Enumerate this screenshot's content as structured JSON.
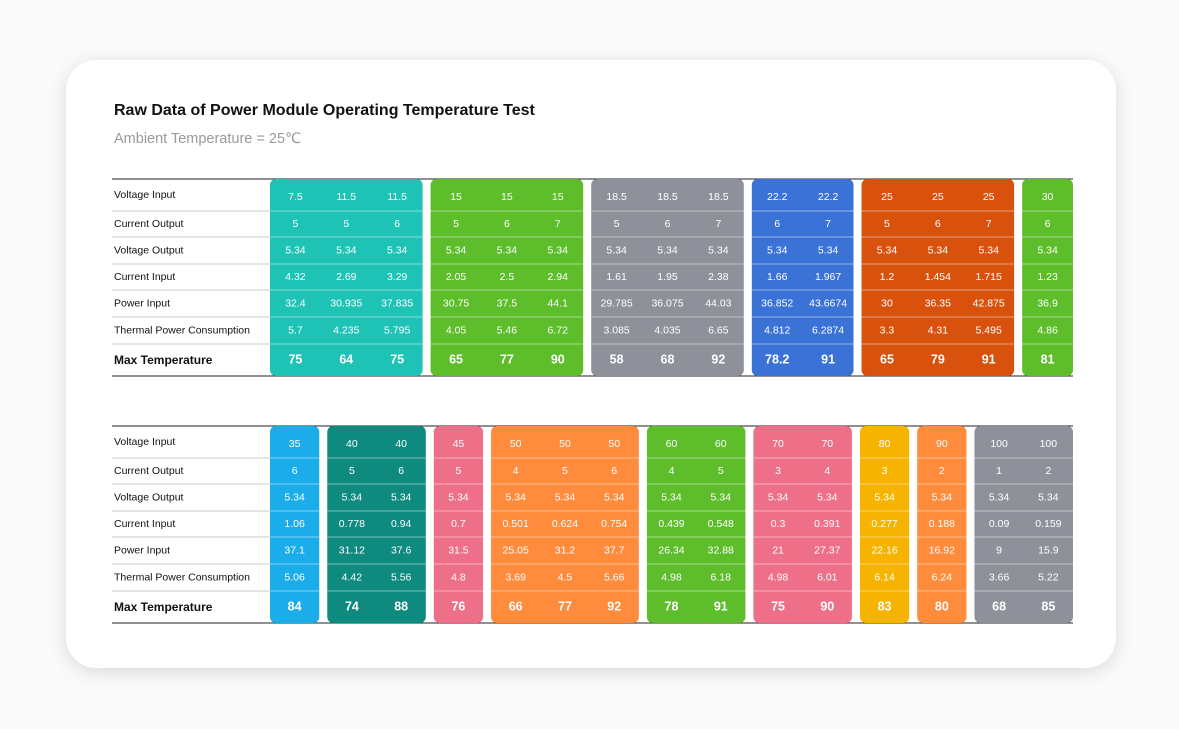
{
  "title": "Raw Data of Power Module Operating Temperature Test",
  "subtitle": "Ambient Temperature = 25℃",
  "tables": [
    {
      "row_labels": [
        "Voltage Input",
        "Current Output",
        "Voltage Output",
        "Current Input",
        "Power Input",
        "Thermal Power Consumption",
        "Max Temperature"
      ],
      "groups": [
        {
          "color": "#1fc3b5",
          "columns": [
            [
              "7.5",
              "5",
              "5.34",
              "4.32",
              "32.4",
              "5.7",
              "75"
            ],
            [
              "11.5",
              "5",
              "5.34",
              "2.69",
              "30.935",
              "4.235",
              "64"
            ],
            [
              "11.5",
              "6",
              "5.34",
              "3.29",
              "37.835",
              "5.795",
              "75"
            ]
          ]
        },
        {
          "color": "#5dbd2b",
          "columns": [
            [
              "15",
              "5",
              "5.34",
              "2.05",
              "30.75",
              "4.05",
              "65"
            ],
            [
              "15",
              "6",
              "5.34",
              "2.5",
              "37.5",
              "5.46",
              "77"
            ],
            [
              "15",
              "7",
              "5.34",
              "2.94",
              "44.1",
              "6.72",
              "90"
            ]
          ]
        },
        {
          "color": "#8e9199",
          "columns": [
            [
              "18.5",
              "5",
              "5.34",
              "1.61",
              "29.785",
              "3.085",
              "58"
            ],
            [
              "18.5",
              "6",
              "5.34",
              "1.95",
              "36.075",
              "4.035",
              "68"
            ],
            [
              "18.5",
              "7",
              "5.34",
              "2.38",
              "44.03",
              "6.65",
              "92"
            ]
          ]
        },
        {
          "color": "#3b72d6",
          "columns": [
            [
              "22.2",
              "6",
              "5.34",
              "1.66",
              "36.852",
              "4.812",
              "78.2"
            ],
            [
              "22.2",
              "7",
              "5.34",
              "1.967",
              "43.6674",
              "6.2874",
              "91"
            ]
          ]
        },
        {
          "color": "#d8520e",
          "columns": [
            [
              "25",
              "5",
              "5.34",
              "1.2",
              "30",
              "3.3",
              "65"
            ],
            [
              "25",
              "6",
              "5.34",
              "1.454",
              "36.35",
              "4.31",
              "79"
            ],
            [
              "25",
              "7",
              "5.34",
              "1.715",
              "42.875",
              "5.495",
              "91"
            ]
          ]
        },
        {
          "color": "#5dbd2b",
          "columns": [
            [
              "30",
              "6",
              "5.34",
              "1.23",
              "36.9",
              "4.86",
              "81"
            ]
          ]
        }
      ]
    },
    {
      "row_labels": [
        "Voltage Input",
        "Current Output",
        "Voltage Output",
        "Current Input",
        "Power Input",
        "Thermal Power Consumption",
        "Max Temperature"
      ],
      "groups": [
        {
          "color": "#1badea",
          "columns": [
            [
              "35",
              "6",
              "5.34",
              "1.06",
              "37.1",
              "5.06",
              "84"
            ]
          ]
        },
        {
          "color": "#0e8a7f",
          "columns": [
            [
              "40",
              "5",
              "5.34",
              "0.778",
              "31.12",
              "4.42",
              "74"
            ],
            [
              "40",
              "6",
              "5.34",
              "0.94",
              "37.6",
              "5.56",
              "88"
            ]
          ]
        },
        {
          "color": "#ee7088",
          "columns": [
            [
              "45",
              "5",
              "5.34",
              "0.7",
              "31.5",
              "4.8",
              "76"
            ]
          ]
        },
        {
          "color": "#ff8b3d",
          "columns": [
            [
              "50",
              "4",
              "5.34",
              "0.501",
              "25.05",
              "3.69",
              "66"
            ],
            [
              "50",
              "5",
              "5.34",
              "0.624",
              "31.2",
              "4.5",
              "77"
            ],
            [
              "50",
              "6",
              "5.34",
              "0.754",
              "37.7",
              "5.66",
              "92"
            ]
          ]
        },
        {
          "color": "#5dbd2b",
          "columns": [
            [
              "60",
              "4",
              "5.34",
              "0.439",
              "26.34",
              "4.98",
              "78"
            ],
            [
              "60",
              "5",
              "5.34",
              "0.548",
              "32.88",
              "6.18",
              "91"
            ]
          ]
        },
        {
          "color": "#ee7088",
          "columns": [
            [
              "70",
              "3",
              "5.34",
              "0.3",
              "21",
              "4.98",
              "75"
            ],
            [
              "70",
              "4",
              "5.34",
              "0.391",
              "27.37",
              "6.01",
              "90"
            ]
          ]
        },
        {
          "color": "#f6b400",
          "columns": [
            [
              "80",
              "3",
              "5.34",
              "0.277",
              "22.16",
              "6.14",
              "83"
            ]
          ]
        },
        {
          "color": "#ff8b3d",
          "columns": [
            [
              "90",
              "2",
              "5.34",
              "0.188",
              "16.92",
              "6.24",
              "80"
            ]
          ]
        },
        {
          "color": "#8e9199",
          "columns": [
            [
              "100",
              "1",
              "5.34",
              "0.09",
              "9",
              "3.66",
              "68"
            ],
            [
              "100",
              "2",
              "5.34",
              "0.159",
              "15.9",
              "5.22",
              "85"
            ]
          ]
        }
      ]
    }
  ]
}
